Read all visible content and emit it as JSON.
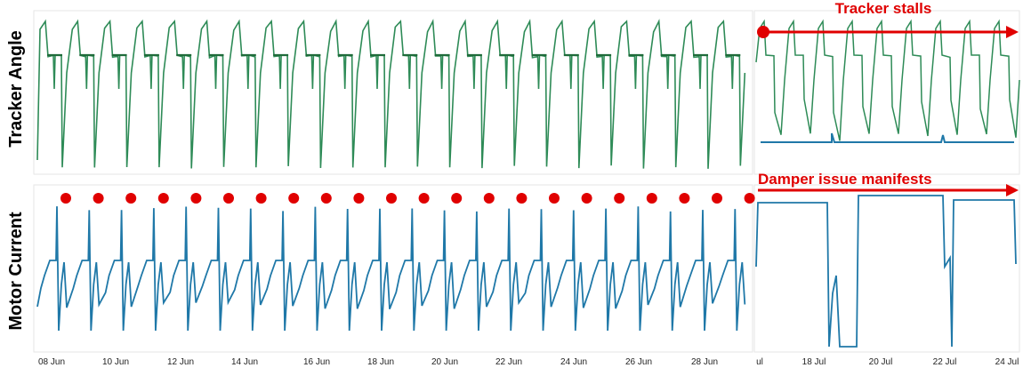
{
  "colors": {
    "tracker_angle": "#2e8b57",
    "tracker_angle_dark": "#1f6b3a",
    "motor_current": "#1f78a8",
    "stalled_angle": "#1f78a8",
    "annotation": "#e00000",
    "marker": "#e00000"
  },
  "chart_data": [
    {
      "type": "line",
      "title": "",
      "ylabel": "Tracker Angle",
      "xlabel": "",
      "grid": false,
      "series": [
        {
          "pattern": "daily east-west sweep",
          "days_shown_left": 22,
          "days_shown_right": 9,
          "color_role": "tracker_angle"
        },
        {
          "pattern": "stuck near stow angle after stall",
          "color_role": "stalled_angle"
        }
      ],
      "annotation": {
        "text": "Tracker stalls",
        "arrow": "right"
      }
    },
    {
      "type": "line",
      "title": "",
      "ylabel": "Motor Current",
      "xlabel": "",
      "grid": false,
      "series": [
        {
          "pattern": "daily current pulse with spike",
          "days_shown_left": 22,
          "color_role": "motor_current"
        },
        {
          "pattern": "current pinned high with drop-outs",
          "color_role": "motor_current"
        }
      ],
      "daily_peak_markers": 22,
      "annotation": {
        "text": "Damper issue manifests",
        "arrow": "right"
      },
      "x_ticks_left": [
        "08 Jun",
        "10 Jun",
        "12 Jun",
        "14 Jun",
        "16 Jun",
        "18 Jun",
        "20 Jun",
        "22 Jun",
        "24 Jun",
        "26 Jun",
        "28 Jun"
      ],
      "x_ticks_right": [
        "ul",
        "18 Jul",
        "20 Jul",
        "22 Jul",
        "24 Jul"
      ]
    }
  ]
}
